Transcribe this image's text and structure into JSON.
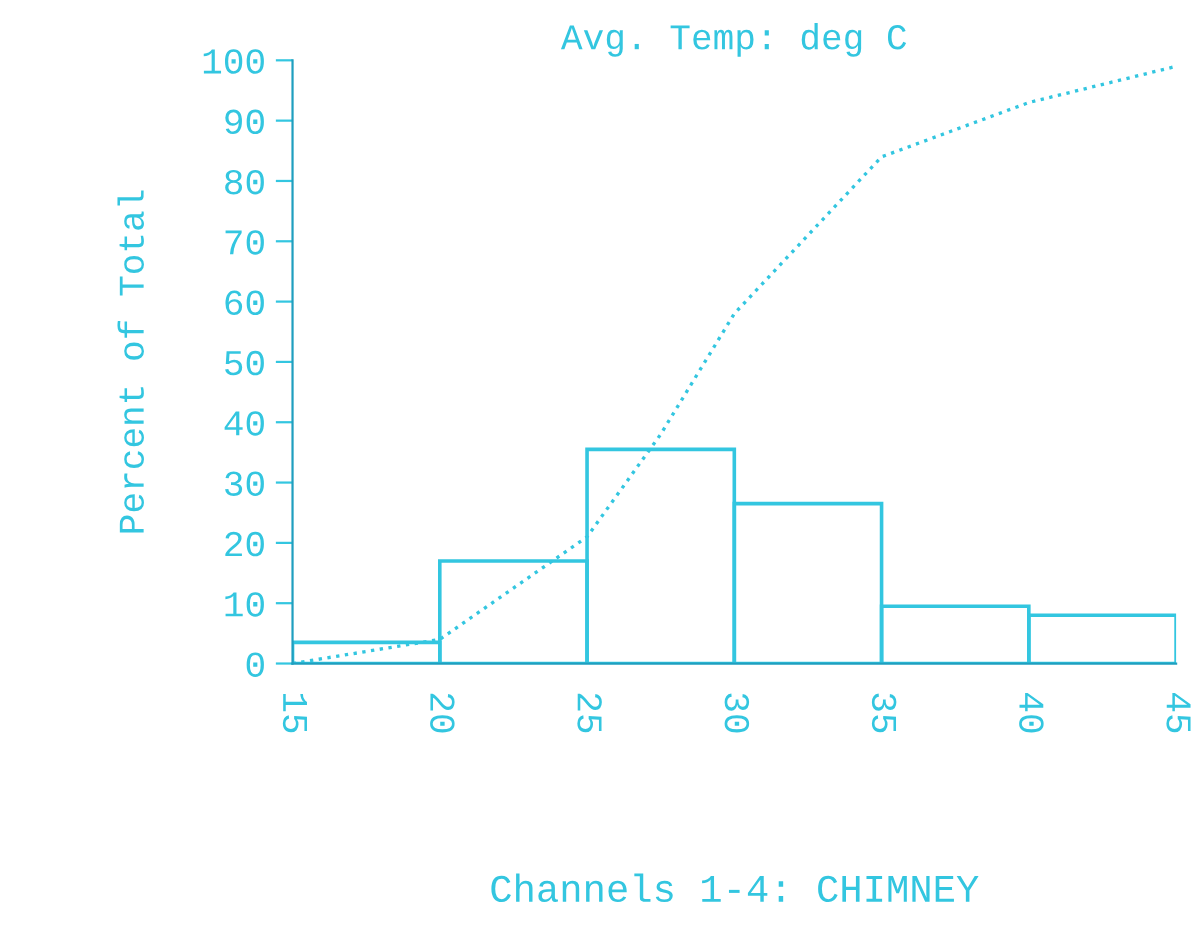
{
  "chart_data": {
    "type": "histogram",
    "title": "Avg. Temp: deg C",
    "xlabel": "Channels 1-4: CHIMNEY",
    "ylabel": "Percent of Total",
    "bins": [
      15,
      20,
      25,
      30,
      35,
      40,
      45
    ],
    "values": [
      3.5,
      17,
      35.5,
      26.5,
      9.5,
      8
    ],
    "color": "#33c6e0",
    "series": [
      {
        "type": "line",
        "color": "#33c6e0",
        "x": [
          15,
          20,
          25,
          27.5,
          30,
          35,
          40,
          45
        ],
        "values": [
          0,
          4,
          21,
          38,
          58,
          84,
          93,
          99
        ]
      }
    ],
    "line_style": "dotted",
    "xlim": [
      15,
      45
    ],
    "xticks": [
      15,
      20,
      25,
      30,
      35,
      40,
      45
    ],
    "ylim": [
      0,
      100
    ],
    "yticks": [
      0,
      10,
      20,
      30,
      40,
      50,
      60,
      70,
      80,
      90,
      100
    ],
    "grid": false,
    "legend": false
  }
}
